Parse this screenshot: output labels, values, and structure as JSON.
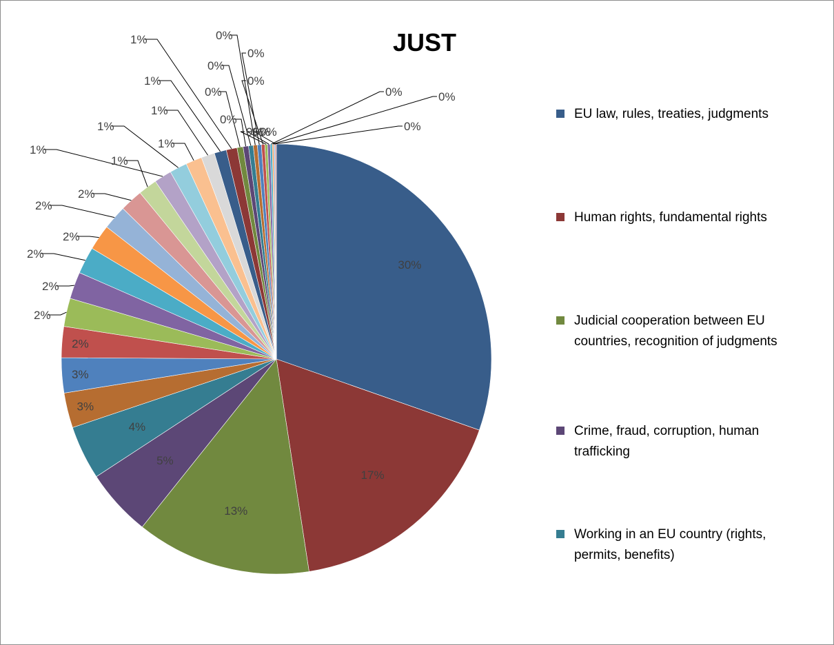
{
  "chart_data": {
    "type": "pie",
    "title": "JUST",
    "colors": [
      "#385d8a",
      "#8c3836",
      "#71893f",
      "#5c4776",
      "#357d91",
      "#b66d31",
      "#4f81bd",
      "#c0504d",
      "#9bbb59",
      "#8064a2",
      "#4bacc6",
      "#f79646",
      "#95b3d7",
      "#d99694",
      "#c3d69b",
      "#b3a2c7",
      "#93cddd",
      "#fac090",
      "#d9d9d9"
    ],
    "slices": [
      {
        "value": 30,
        "label": "30%",
        "legend": "EU law, rules, treaties, judgments"
      },
      {
        "value": 17,
        "label": "17%",
        "legend": "Human rights, fundamental rights"
      },
      {
        "value": 13,
        "label": "13%",
        "legend": "Judicial cooperation between EU countries, recognition of judgments"
      },
      {
        "value": 5,
        "label": "5%",
        "legend": "Crime, fraud, corruption, human trafficking"
      },
      {
        "value": 4,
        "label": "4%",
        "legend": "Working in an EU country (rights, permits, benefits)"
      },
      {
        "value": 2.6,
        "label": "3%"
      },
      {
        "value": 2.6,
        "label": "3%"
      },
      {
        "value": 2.3,
        "label": "2%"
      },
      {
        "value": 2.1,
        "label": "2%"
      },
      {
        "value": 2.0,
        "label": "2%"
      },
      {
        "value": 2.0,
        "label": "2%"
      },
      {
        "value": 1.9,
        "label": "2%"
      },
      {
        "value": 1.8,
        "label": "2%"
      },
      {
        "value": 1.7,
        "label": "2%"
      },
      {
        "value": 1.4,
        "label": "1%"
      },
      {
        "value": 1.3,
        "label": "1%"
      },
      {
        "value": 1.3,
        "label": "1%"
      },
      {
        "value": 1.2,
        "label": "1%"
      },
      {
        "value": 1.0,
        "label": "1%"
      },
      {
        "value": 0.9,
        "label": "1%"
      },
      {
        "value": 0.8,
        "label": "1%"
      },
      {
        "value": 0.45,
        "label": "0%"
      },
      {
        "value": 0.4,
        "label": "0%"
      },
      {
        "value": 0.35,
        "label": "0%"
      },
      {
        "value": 0.3,
        "label": "0%"
      },
      {
        "value": 0.3,
        "label": "0%"
      },
      {
        "value": 0.25,
        "label": "0%"
      },
      {
        "value": 0.2,
        "label": "0%"
      },
      {
        "value": 0.2,
        "label": "0%"
      },
      {
        "value": 0.15,
        "label": "0%"
      },
      {
        "value": 0.1,
        "label": "0%"
      },
      {
        "value": 0.1,
        "label": "0%"
      },
      {
        "value": 0.1,
        "label": "0%"
      }
    ],
    "legend_position": "right"
  }
}
